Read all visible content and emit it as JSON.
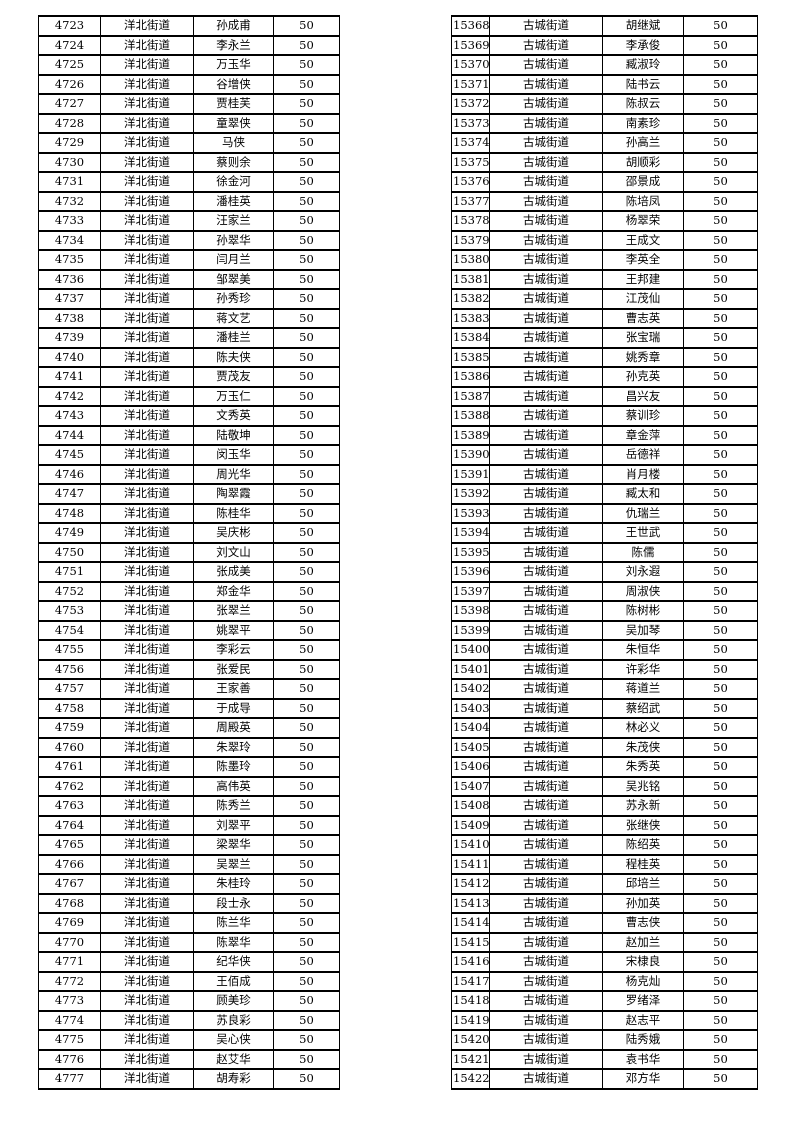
{
  "page": {
    "background_color": "#ffffff",
    "text_color": "#000000",
    "border_color": "#000000"
  },
  "tables": [
    {
      "name": "left",
      "street": "洋北街道",
      "amount": "50",
      "rows": [
        {
          "id": "4723",
          "name": "孙成甫"
        },
        {
          "id": "4724",
          "name": "李永兰"
        },
        {
          "id": "4725",
          "name": "万玉华"
        },
        {
          "id": "4726",
          "name": "谷增侠"
        },
        {
          "id": "4727",
          "name": "贾桂芙"
        },
        {
          "id": "4728",
          "name": "童翠侠"
        },
        {
          "id": "4729",
          "name": "马侠"
        },
        {
          "id": "4730",
          "name": "蔡则余"
        },
        {
          "id": "4731",
          "name": "徐金河"
        },
        {
          "id": "4732",
          "name": "潘桂英"
        },
        {
          "id": "4733",
          "name": "汪家兰"
        },
        {
          "id": "4734",
          "name": "孙翠华"
        },
        {
          "id": "4735",
          "name": "闫月兰"
        },
        {
          "id": "4736",
          "name": "邹翠美"
        },
        {
          "id": "4737",
          "name": "孙秀珍"
        },
        {
          "id": "4738",
          "name": "蒋文艺"
        },
        {
          "id": "4739",
          "name": "潘桂兰"
        },
        {
          "id": "4740",
          "name": "陈夫侠"
        },
        {
          "id": "4741",
          "name": "贾茂友"
        },
        {
          "id": "4742",
          "name": "万玉仁"
        },
        {
          "id": "4743",
          "name": "文秀英"
        },
        {
          "id": "4744",
          "name": "陆敬坤"
        },
        {
          "id": "4745",
          "name": "闵玉华"
        },
        {
          "id": "4746",
          "name": "周光华"
        },
        {
          "id": "4747",
          "name": "陶翠霞"
        },
        {
          "id": "4748",
          "name": "陈桂华"
        },
        {
          "id": "4749",
          "name": "吴庆彬"
        },
        {
          "id": "4750",
          "name": "刘文山"
        },
        {
          "id": "4751",
          "name": "张成美"
        },
        {
          "id": "4752",
          "name": "郑金华"
        },
        {
          "id": "4753",
          "name": "张翠兰"
        },
        {
          "id": "4754",
          "name": "姚翠平"
        },
        {
          "id": "4755",
          "name": "李彩云"
        },
        {
          "id": "4756",
          "name": "张爱民"
        },
        {
          "id": "4757",
          "name": "王家善"
        },
        {
          "id": "4758",
          "name": "于成导"
        },
        {
          "id": "4759",
          "name": "周殿英"
        },
        {
          "id": "4760",
          "name": "朱翠玲"
        },
        {
          "id": "4761",
          "name": "陈墨玲"
        },
        {
          "id": "4762",
          "name": "高伟英"
        },
        {
          "id": "4763",
          "name": "陈秀兰"
        },
        {
          "id": "4764",
          "name": "刘翠平"
        },
        {
          "id": "4765",
          "name": "梁翠华"
        },
        {
          "id": "4766",
          "name": "吴翠兰"
        },
        {
          "id": "4767",
          "name": "朱桂玲"
        },
        {
          "id": "4768",
          "name": "段士永"
        },
        {
          "id": "4769",
          "name": "陈兰华"
        },
        {
          "id": "4770",
          "name": "陈翠华"
        },
        {
          "id": "4771",
          "name": "纪华侠"
        },
        {
          "id": "4772",
          "name": "王佰成"
        },
        {
          "id": "4773",
          "name": "顾美珍"
        },
        {
          "id": "4774",
          "name": "苏良彩"
        },
        {
          "id": "4775",
          "name": "吴心侠"
        },
        {
          "id": "4776",
          "name": "赵艾华"
        },
        {
          "id": "4777",
          "name": "胡寿彩"
        }
      ]
    },
    {
      "name": "right",
      "street": "古城街道",
      "amount": "50",
      "rows": [
        {
          "id": "15368",
          "name": "胡继斌"
        },
        {
          "id": "15369",
          "name": "李承俊"
        },
        {
          "id": "15370",
          "name": "臧淑玲"
        },
        {
          "id": "15371",
          "name": "陆书云"
        },
        {
          "id": "15372",
          "name": "陈叔云"
        },
        {
          "id": "15373",
          "name": "南素珍"
        },
        {
          "id": "15374",
          "name": "孙高兰"
        },
        {
          "id": "15375",
          "name": "胡顺彩"
        },
        {
          "id": "15376",
          "name": "邵景成"
        },
        {
          "id": "15377",
          "name": "陈培凤"
        },
        {
          "id": "15378",
          "name": "杨翠荣"
        },
        {
          "id": "15379",
          "name": "王成文"
        },
        {
          "id": "15380",
          "name": "李英全"
        },
        {
          "id": "15381",
          "name": "王邦建"
        },
        {
          "id": "15382",
          "name": "江茂仙"
        },
        {
          "id": "15383",
          "name": "曹志英"
        },
        {
          "id": "15384",
          "name": "张宝瑞"
        },
        {
          "id": "15385",
          "name": "姚秀章"
        },
        {
          "id": "15386",
          "name": "孙克英"
        },
        {
          "id": "15387",
          "name": "昌兴友"
        },
        {
          "id": "15388",
          "name": "蔡训珍"
        },
        {
          "id": "15389",
          "name": "章金萍"
        },
        {
          "id": "15390",
          "name": "岳德祥"
        },
        {
          "id": "15391",
          "name": "肖月楼"
        },
        {
          "id": "15392",
          "name": "臧太和"
        },
        {
          "id": "15393",
          "name": "仇瑞兰"
        },
        {
          "id": "15394",
          "name": "王世武"
        },
        {
          "id": "15395",
          "name": "陈儒"
        },
        {
          "id": "15396",
          "name": "刘永遐"
        },
        {
          "id": "15397",
          "name": "周淑侠"
        },
        {
          "id": "15398",
          "name": "陈树彬"
        },
        {
          "id": "15399",
          "name": "吴加琴"
        },
        {
          "id": "15400",
          "name": "朱恒华"
        },
        {
          "id": "15401",
          "name": "许彩华"
        },
        {
          "id": "15402",
          "name": "蒋道兰"
        },
        {
          "id": "15403",
          "name": "蔡绍武"
        },
        {
          "id": "15404",
          "name": "林必义"
        },
        {
          "id": "15405",
          "name": "朱茂侠"
        },
        {
          "id": "15406",
          "name": "朱秀英"
        },
        {
          "id": "15407",
          "name": "吴兆铭"
        },
        {
          "id": "15408",
          "name": "苏永新"
        },
        {
          "id": "15409",
          "name": "张继侠"
        },
        {
          "id": "15410",
          "name": "陈绍英"
        },
        {
          "id": "15411",
          "name": "程桂英"
        },
        {
          "id": "15412",
          "name": "邱培兰"
        },
        {
          "id": "15413",
          "name": "孙加英"
        },
        {
          "id": "15414",
          "name": "曹志侠"
        },
        {
          "id": "15415",
          "name": "赵加兰"
        },
        {
          "id": "15416",
          "name": "宋棣良"
        },
        {
          "id": "15417",
          "name": "杨克灿"
        },
        {
          "id": "15418",
          "name": "罗绪泽"
        },
        {
          "id": "15419",
          "name": "赵志平"
        },
        {
          "id": "15420",
          "name": "陆秀娥"
        },
        {
          "id": "15421",
          "name": "袁书华"
        },
        {
          "id": "15422",
          "name": "邓方华"
        }
      ]
    }
  ]
}
